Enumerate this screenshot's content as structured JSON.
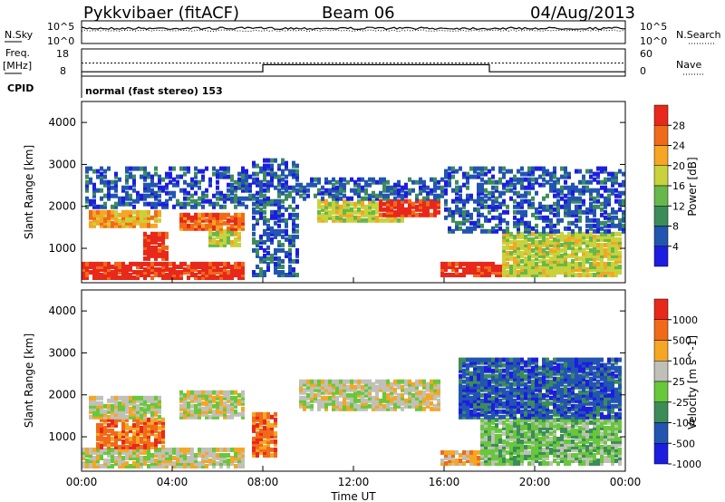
{
  "header": {
    "station": "Pykkvibaer (fitACF)",
    "beam": "Beam 06",
    "date": "04/Aug/2013"
  },
  "panels": {
    "nsky": {
      "label": "N.Sky",
      "ytick_top": "10^5",
      "ytick_bottom": "10^0",
      "right_tick_top": "10^5",
      "right_tick_bottom": "10^0",
      "right_label": "N.Search"
    },
    "freq": {
      "label_top": "Freq.",
      "label_unit": "[MHz]",
      "ytick_top": "18",
      "ytick_bottom": "8",
      "right_tick_top": "60",
      "right_tick_bottom": "0",
      "right_label": "Nave",
      "segments": [
        {
          "start_h": 0,
          "end_h": 8,
          "value": 9.6
        },
        {
          "start_h": 8,
          "end_h": 18,
          "value": 12.2
        },
        {
          "start_h": 18,
          "end_h": 24,
          "value": 9.6
        }
      ],
      "dotted_value": 12.8
    },
    "cpid": {
      "label": "CPID",
      "text": "normal (fast stereo) 153"
    }
  },
  "axes": {
    "ylabel": "Slant Range [km]",
    "xlabel": "Time UT",
    "yticks": [
      "1000",
      "2000",
      "3000",
      "4000"
    ],
    "xticks": [
      "00:00",
      "04:00",
      "08:00",
      "12:00",
      "16:00",
      "20:00",
      "00:00"
    ]
  },
  "chart_data": [
    {
      "type": "heatmap",
      "name": "power",
      "colorbar_label": "Power [dB]",
      "colorbar_ticks": [
        "4",
        "8",
        "12",
        "16",
        "20",
        "24",
        "28"
      ],
      "x_range_hours": [
        0,
        24
      ],
      "y_range_km": [
        180,
        4500
      ],
      "colors": [
        "#1d1de0",
        "#2255b0",
        "#3c8c5a",
        "#66b84a",
        "#c8d23c",
        "#f5a623",
        "#f06a1a",
        "#e8281a"
      ],
      "regions": [
        {
          "t0": 0.0,
          "t1": 7.2,
          "r0": 230,
          "r1": 620,
          "level": 7
        },
        {
          "t0": 0.3,
          "t1": 3.5,
          "r0": 1450,
          "r1": 1850,
          "level": 5
        },
        {
          "t0": 2.7,
          "t1": 3.8,
          "r0": 700,
          "r1": 1300,
          "level": 7
        },
        {
          "t0": 4.2,
          "t1": 7.2,
          "r0": 1400,
          "r1": 1800,
          "level": 6
        },
        {
          "t0": 5.5,
          "t1": 7.0,
          "r0": 1000,
          "r1": 1400,
          "level": 4
        },
        {
          "t0": 10.3,
          "t1": 14.2,
          "r0": 1600,
          "r1": 2100,
          "level": 4
        },
        {
          "t0": 13.0,
          "t1": 15.8,
          "r0": 1700,
          "r1": 2100,
          "level": 7
        },
        {
          "t0": 15.8,
          "t1": 18.8,
          "r0": 290,
          "r1": 590,
          "level": 7
        },
        {
          "t0": 18.5,
          "t1": 23.8,
          "r0": 300,
          "r1": 1300,
          "level": 4
        },
        {
          "t0": 0.1,
          "t1": 7.5,
          "r0": 1900,
          "r1": 2900,
          "level": 1
        },
        {
          "t0": 7.5,
          "t1": 9.5,
          "r0": 300,
          "r1": 3100,
          "level": 1
        },
        {
          "t0": 9.5,
          "t1": 16.0,
          "r0": 2100,
          "r1": 2600,
          "level": 1
        },
        {
          "t0": 16.0,
          "t1": 24.0,
          "r0": 1300,
          "r1": 2900,
          "level": 1
        }
      ]
    },
    {
      "type": "heatmap",
      "name": "velocity",
      "colorbar_label": "Velocity [m s^-1]",
      "colorbar_ticks": [
        "1000",
        "500",
        "100",
        "25",
        "-25",
        "-100",
        "-500",
        "-1000"
      ],
      "x_range_hours": [
        0,
        24
      ],
      "y_range_km": [
        180,
        4500
      ],
      "colors": [
        "#1d1de0",
        "#2255b0",
        "#3c8c5a",
        "#66c83a",
        "#c0c0b8",
        "#f5a623",
        "#f06a1a",
        "#e8281a"
      ],
      "regions": [
        {
          "t0": 0.0,
          "t1": 7.2,
          "r0": 230,
          "r1": 650,
          "level": 4
        },
        {
          "t0": 0.3,
          "t1": 3.5,
          "r0": 1400,
          "r1": 1900,
          "level": 4
        },
        {
          "t0": 0.6,
          "t1": 3.6,
          "r0": 700,
          "r1": 1400,
          "level": 6
        },
        {
          "t0": 4.2,
          "t1": 7.2,
          "r0": 1400,
          "r1": 2000,
          "level": 4
        },
        {
          "t0": 7.4,
          "t1": 8.6,
          "r0": 500,
          "r1": 1500,
          "level": 6
        },
        {
          "t0": 9.5,
          "t1": 15.8,
          "r0": 1600,
          "r1": 2300,
          "level": 4
        },
        {
          "t0": 15.8,
          "t1": 18.8,
          "r0": 290,
          "r1": 620,
          "level": 5
        },
        {
          "t0": 17.5,
          "t1": 23.8,
          "r0": 300,
          "r1": 1400,
          "level": 3
        },
        {
          "t0": 16.5,
          "t1": 23.8,
          "r0": 1400,
          "r1": 2800,
          "level": 1
        }
      ]
    }
  ]
}
